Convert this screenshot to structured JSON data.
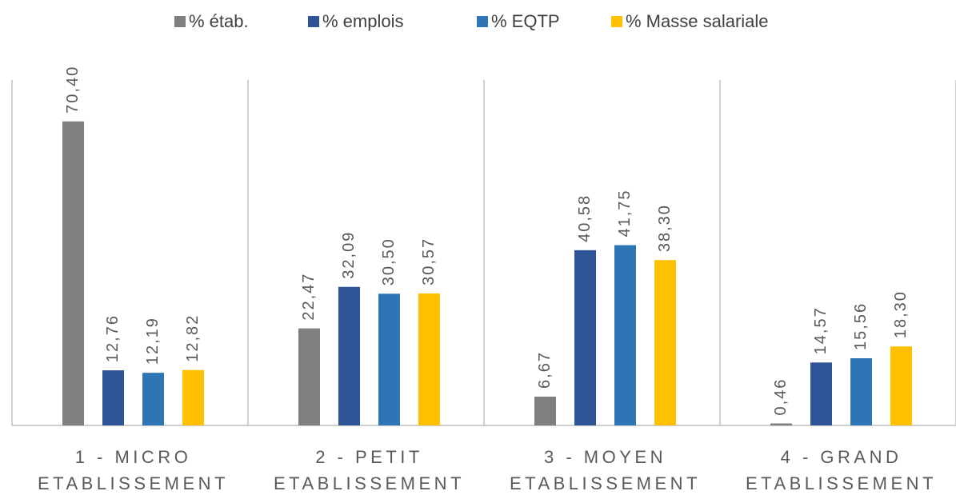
{
  "chart_data": {
    "type": "bar",
    "categories": [
      [
        "1 - MICRO",
        "ETABLISSEMENT"
      ],
      [
        "2 - PETIT",
        "ETABLISSEMENT"
      ],
      [
        "3 - MOYEN",
        "ETABLISSEMENT"
      ],
      [
        "4 - GRAND",
        "ETABLISSEMENT"
      ]
    ],
    "series": [
      {
        "name": "% étab.",
        "color": "#7f7f7f",
        "values": [
          70.4,
          22.47,
          6.67,
          0.46
        ],
        "value_labels": [
          "70,40",
          "22,47",
          "6,67",
          "0,46"
        ]
      },
      {
        "name": "% emplois",
        "color": "#2f5597",
        "values": [
          12.76,
          32.09,
          40.58,
          14.57
        ],
        "value_labels": [
          "12,76",
          "32,09",
          "40,58",
          "14,57"
        ]
      },
      {
        "name": "% EQTP",
        "color": "#2e75b6",
        "values": [
          12.19,
          30.5,
          41.75,
          15.56
        ],
        "value_labels": [
          "12,19",
          "30,50",
          "41,75",
          "15,56"
        ]
      },
      {
        "name": "% Masse salariale",
        "color": "#ffc000",
        "values": [
          12.82,
          30.57,
          38.3,
          18.3
        ],
        "value_labels": [
          "12,82",
          "30,57",
          "38,30",
          "18,30"
        ]
      }
    ],
    "ylim": [
      0,
      80
    ],
    "legend": "top"
  }
}
